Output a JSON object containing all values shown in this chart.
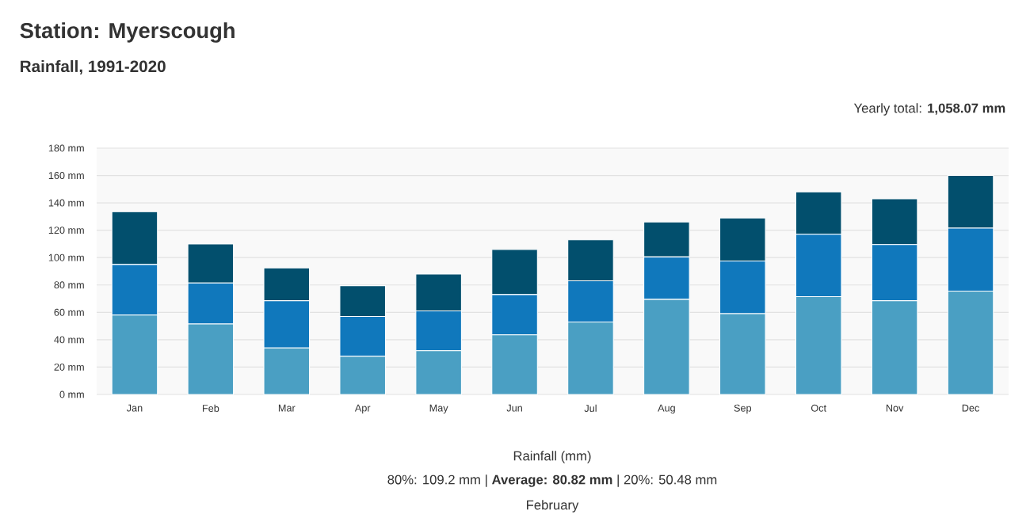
{
  "chart_data": {
    "type": "bar",
    "title": "Station: Myerscough",
    "subtitle": "Rainfall, 1991-2020",
    "xlabel": "Rainfall (mm)",
    "annotations": [
      "Yearly total: **1,058.07 mm**",
      "80%: 109.2 mm | **Average: 80.82 mm** | 20%: 50.48 mm",
      "February"
    ],
    "categories": [
      "Jan",
      "Feb",
      "Mar",
      "Apr",
      "May",
      "Jun",
      "Jul",
      "Aug",
      "Sep",
      "Oct",
      "Nov",
      "Dec"
    ],
    "stacked": true,
    "series": [
      {
        "color": "#4a9fc3",
        "values": [
          58,
          51.5,
          34,
          28,
          32,
          43.5,
          53,
          69.5,
          59,
          71.5,
          68.5,
          75.5
        ]
      },
      {
        "color": "#1078bc",
        "values": [
          37,
          30,
          34.5,
          29,
          29,
          29.5,
          30,
          31,
          38.5,
          45.5,
          41,
          46
        ]
      },
      {
        "color": "#024f6d",
        "values": [
          38.5,
          28.5,
          24,
          22.5,
          27,
          33,
          30,
          25.5,
          31.5,
          31,
          33.5,
          38.5
        ]
      }
    ],
    "ylim": [
      0,
      180
    ],
    "yticks": [
      {
        "value": 0,
        "label": "0 mm"
      },
      {
        "value": 20,
        "label": "20 mm"
      },
      {
        "value": 40,
        "label": "40 mm"
      },
      {
        "value": 60,
        "label": "60 mm"
      },
      {
        "value": 80,
        "label": "80 mm"
      },
      {
        "value": 100,
        "label": "100 mm"
      },
      {
        "value": 120,
        "label": "120 mm"
      },
      {
        "value": 140,
        "label": "140 mm"
      },
      {
        "value": 160,
        "label": "160 mm"
      },
      {
        "value": 180,
        "label": "180 mm"
      }
    ],
    "grid": "y"
  }
}
